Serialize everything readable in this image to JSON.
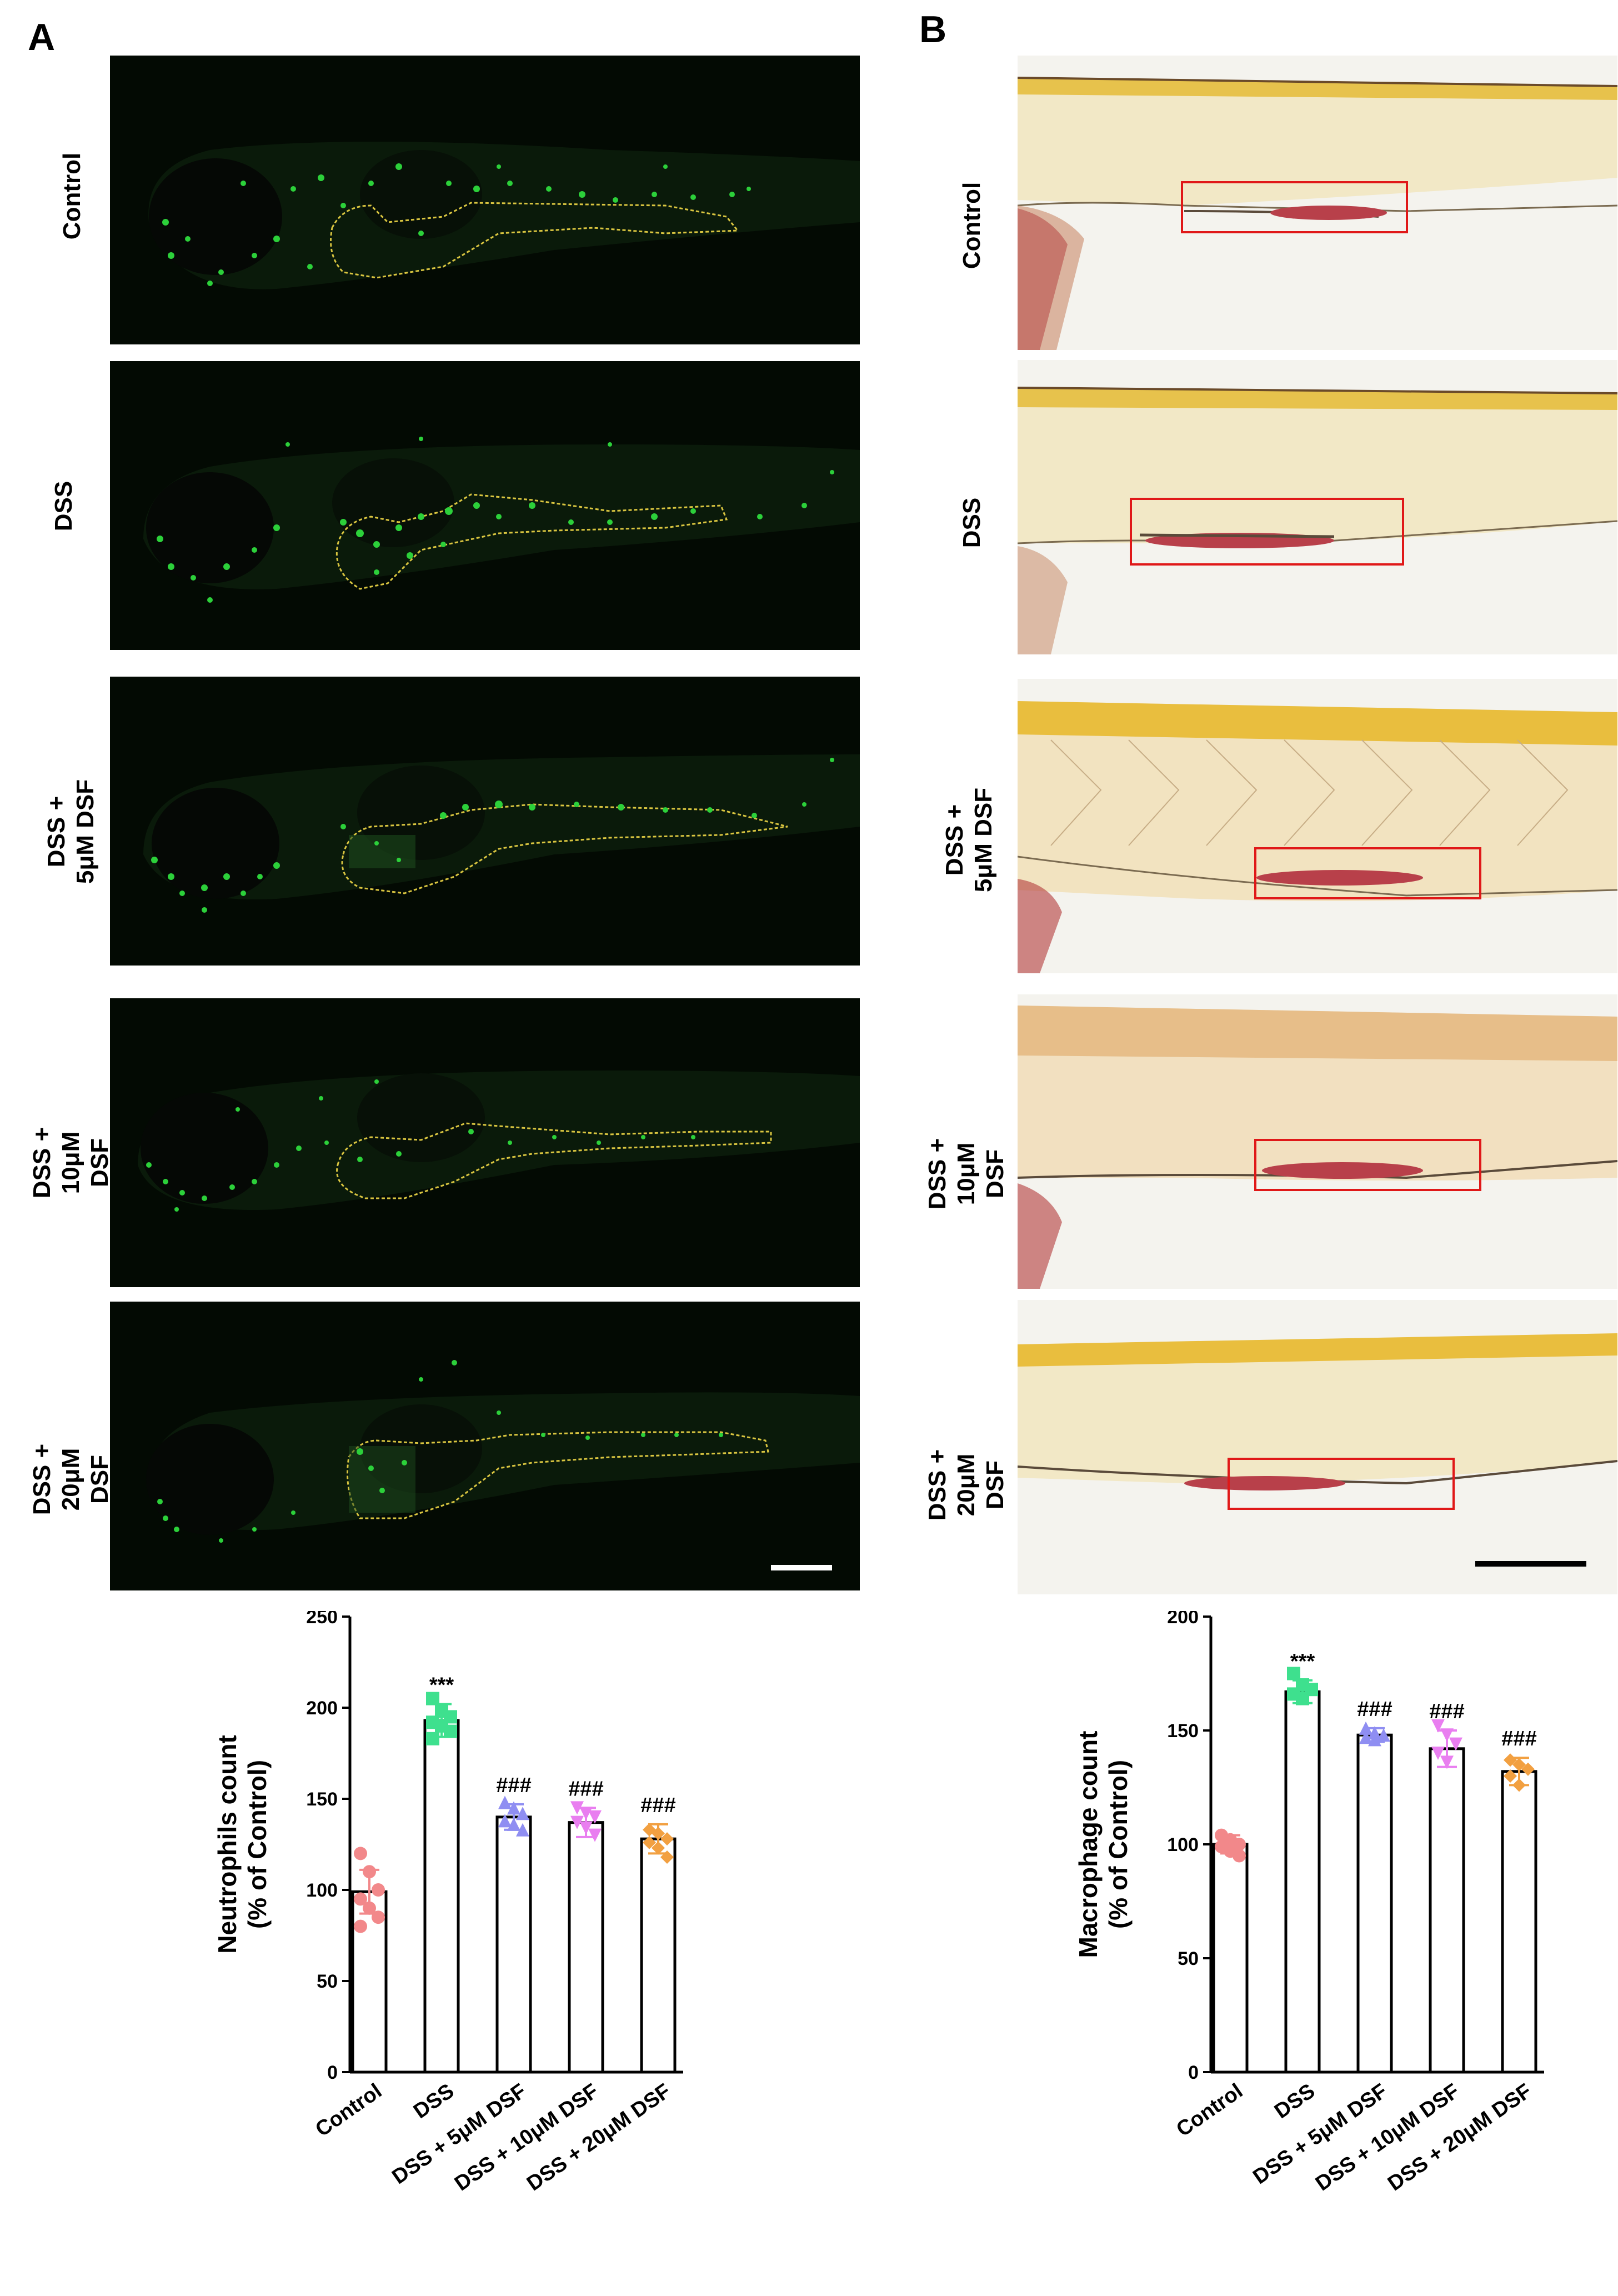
{
  "panels": {
    "a": {
      "letter": "A"
    },
    "b": {
      "letter": "B"
    }
  },
  "row_labels_a": [
    {
      "lines": [
        "Control"
      ]
    },
    {
      "lines": [
        "DSS"
      ]
    },
    {
      "lines": [
        "DSS +",
        "5μM DSF"
      ]
    },
    {
      "lines": [
        "DSS +",
        "10μM DSF"
      ]
    },
    {
      "lines": [
        "DSS +",
        "20μM DSF"
      ]
    }
  ],
  "row_labels_b": [
    {
      "lines": [
        "Control"
      ]
    },
    {
      "lines": [
        "DSS"
      ]
    },
    {
      "lines": [
        "DSS +",
        "5μM DSF"
      ]
    },
    {
      "lines": [
        "DSS +",
        "10μM DSF"
      ]
    },
    {
      "lines": [
        "DSS +",
        "20μM DSF"
      ]
    }
  ],
  "colors": {
    "control": "#f2888a",
    "dss": "#3ee08e",
    "dsf5": "#8f8ef2",
    "dsf10": "#e97ef0",
    "dsf20": "#f2a041",
    "fluo_green": "#2cd03a",
    "outline_yellow": "#d9c540",
    "roi_red": "#e01818"
  },
  "chart_data": [
    {
      "type": "bar",
      "panel": "A",
      "ylabel_lines": [
        "Neutrophils count",
        "(% of Control)"
      ],
      "ylim": [
        0,
        250
      ],
      "yticks": [
        "0",
        "50",
        "100",
        "150",
        "200",
        "250"
      ],
      "categories": [
        "Control",
        "DSS",
        "DSS + 5μM DSF",
        "DSS + 10μM DSF",
        "DSS + 20μM DSF"
      ],
      "values": [
        99,
        193,
        140,
        137,
        128
      ],
      "errors": [
        12,
        9,
        7,
        8,
        8
      ],
      "annotations": [
        "",
        "***",
        "###",
        "###",
        "###"
      ],
      "points": [
        [
          120,
          110,
          100,
          95,
          90,
          85,
          80
        ],
        [
          205,
          198,
          195,
          192,
          190,
          187,
          183
        ],
        [
          148,
          145,
          142,
          138,
          136,
          133
        ],
        [
          145,
          142,
          140,
          137,
          134,
          130
        ],
        [
          133,
          131,
          128,
          126,
          123,
          118
        ]
      ]
    },
    {
      "type": "bar",
      "panel": "B",
      "ylabel_lines": [
        "Macrophage count",
        "(% of Control)"
      ],
      "ylim": [
        0,
        200
      ],
      "yticks": [
        "0",
        "50",
        "100",
        "150",
        "200"
      ],
      "categories": [
        "Control",
        "DSS",
        "DSS + 5μM DSF",
        "DSS + 10μM DSF",
        "DSS + 20μM DSF"
      ],
      "values": [
        100,
        167,
        148,
        142,
        132
      ],
      "errors": [
        4,
        5,
        3,
        8,
        6
      ],
      "annotations": [
        "",
        "***",
        "###",
        "###",
        "###"
      ],
      "points": [
        [
          104,
          102,
          100,
          99,
          97,
          95
        ],
        [
          175,
          170,
          168,
          166,
          164
        ],
        [
          151,
          149,
          148,
          147,
          146
        ],
        [
          152,
          148,
          144,
          140,
          136
        ],
        [
          137,
          135,
          133,
          130,
          126
        ]
      ]
    }
  ]
}
